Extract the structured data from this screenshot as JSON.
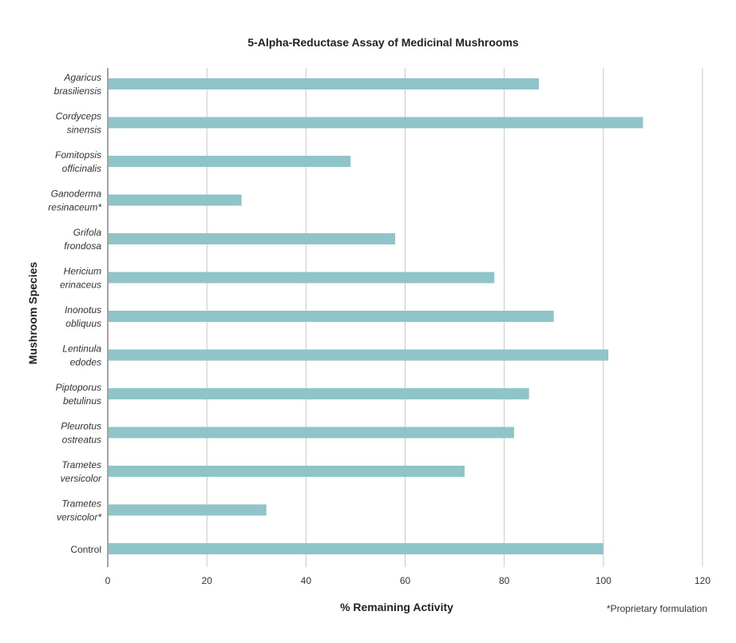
{
  "chart_data": {
    "type": "bar",
    "orientation": "horizontal",
    "title": "5-Alpha-Reductase Assay of Medicinal Mushrooms",
    "xlabel": "% Remaining Activity",
    "ylabel": "Mushroom Species",
    "footnote": "*Proprietary formulation",
    "xlim": [
      0,
      120
    ],
    "xticks": [
      "0",
      "20",
      "40",
      "60",
      "80",
      "100",
      "120"
    ],
    "grid": "vertical",
    "bar_color": "#8fc5c9",
    "categories": [
      [
        "Agaricus",
        "brasiliensis"
      ],
      [
        "Cordyceps",
        "sinensis"
      ],
      [
        "Fomitopsis",
        "officinalis"
      ],
      [
        "Ganoderma",
        "resinaceum*"
      ],
      [
        "Grifola",
        "frondosa"
      ],
      [
        "Hericium",
        "erinaceus"
      ],
      [
        "Inonotus",
        "obliquus"
      ],
      [
        "Lentinula",
        "edodes"
      ],
      [
        "Piptoporus",
        "betulinus"
      ],
      [
        "Pleurotus",
        "ostreatus"
      ],
      [
        "Trametes",
        "versicolor"
      ],
      [
        "Trametes",
        "versicolor*"
      ],
      [
        "Control"
      ]
    ],
    "values": [
      87,
      108,
      49,
      27,
      58,
      78,
      90,
      101,
      85,
      82,
      72,
      32,
      100
    ]
  }
}
